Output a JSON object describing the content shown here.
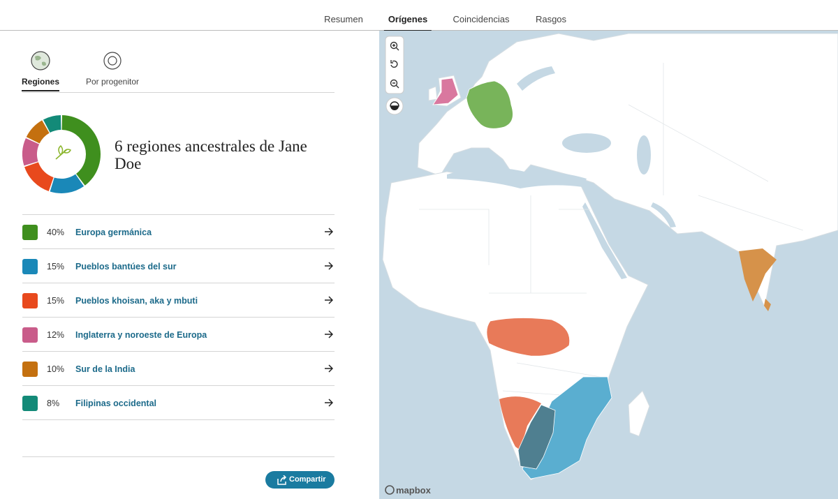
{
  "nav": {
    "tabs": [
      "Resumen",
      "Orígenes",
      "Coincidencias",
      "Rasgos"
    ],
    "active": 1
  },
  "view_tabs": {
    "tabs": [
      "Regiones",
      "Por progenitor"
    ],
    "active": 0
  },
  "summary": {
    "title": "6 regiones ancestrales de Jane Doe"
  },
  "regions": [
    {
      "percent": 40,
      "percent_label": "40%",
      "name": "Europa germánica",
      "color": "#3f8f1e"
    },
    {
      "percent": 15,
      "percent_label": "15%",
      "name": "Pueblos bantúes del sur",
      "color": "#1a88b8"
    },
    {
      "percent": 15,
      "percent_label": "15%",
      "name": "Pueblos khoisan, aka y mbuti",
      "color": "#e8491d"
    },
    {
      "percent": 12,
      "percent_label": "12%",
      "name": "Inglaterra y noroeste de Europa",
      "color": "#c95c8a"
    },
    {
      "percent": 10,
      "percent_label": "10%",
      "name": "Sur de la India",
      "color": "#c4700f"
    },
    {
      "percent": 8,
      "percent_label": "8%",
      "name": "Filipinas occidental",
      "color": "#138a78"
    }
  ],
  "share_button": "Compartir",
  "map": {
    "attribution": "mapbox"
  }
}
